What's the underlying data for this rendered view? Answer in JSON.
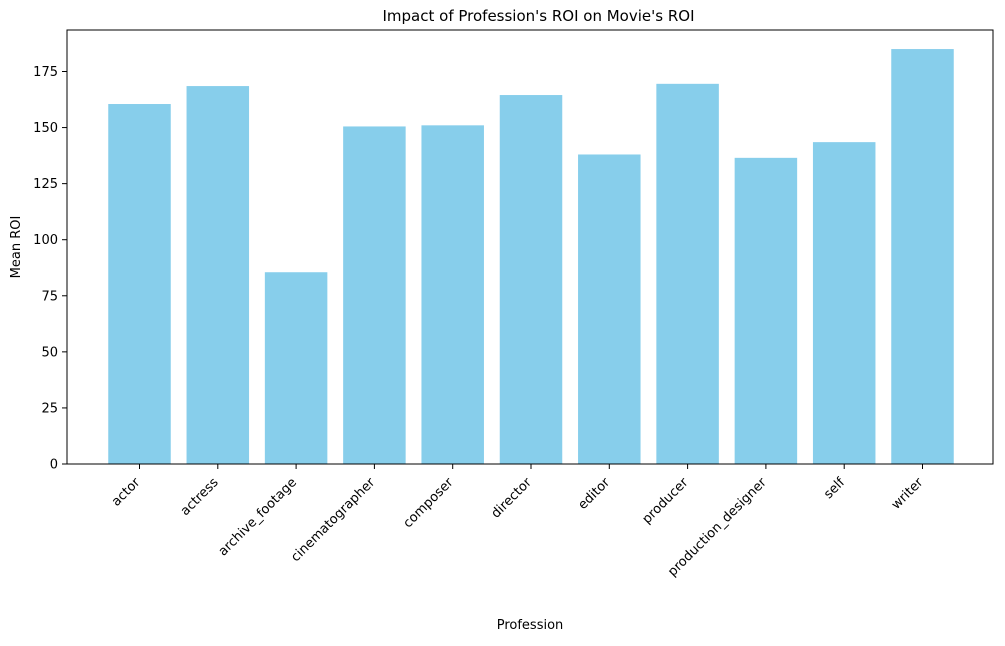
{
  "chart_data": {
    "type": "bar",
    "title": "Impact of Profession's ROI on Movie's ROI",
    "xlabel": "Profession",
    "ylabel": "Mean ROI",
    "categories": [
      "actor",
      "actress",
      "archive_footage",
      "cinematographer",
      "composer",
      "director",
      "editor",
      "producer",
      "production_designer",
      "self",
      "writer"
    ],
    "values": [
      160.5,
      168.5,
      85.5,
      150.5,
      151,
      164.5,
      138,
      169.5,
      136.5,
      143.5,
      185
    ],
    "ylim": [
      0,
      193.5
    ],
    "yticks": [
      0,
      25,
      50,
      75,
      100,
      125,
      150,
      175
    ],
    "bar_color": "#87CEEB",
    "grid": false
  }
}
